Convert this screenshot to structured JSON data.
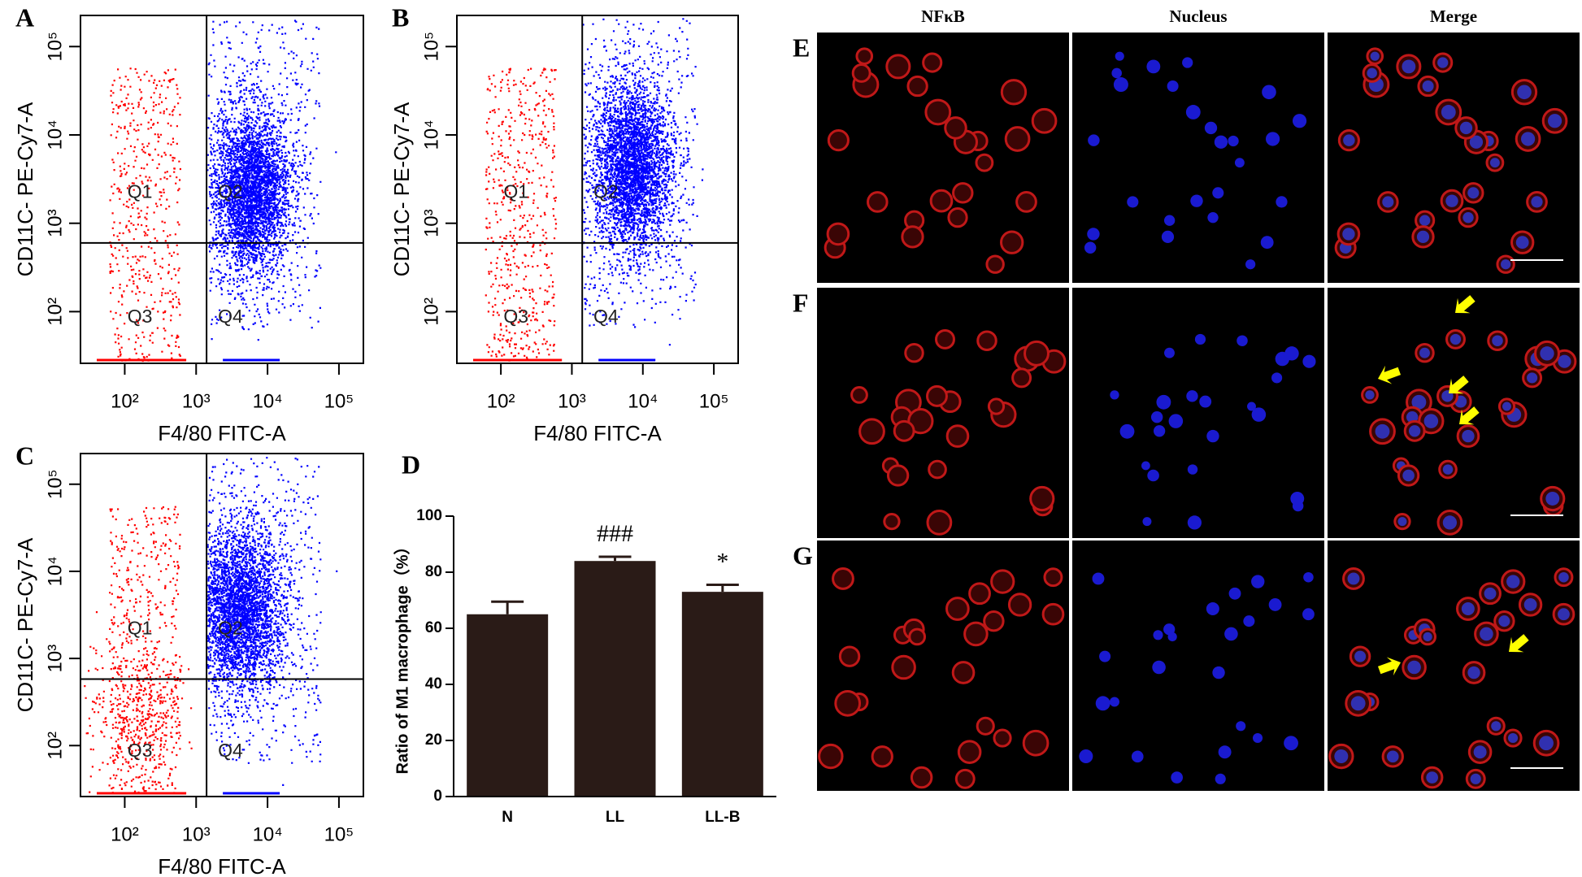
{
  "chart_data": [
    {
      "type": "flow",
      "panel": "A",
      "xlabel": "F4/80 FITC-A",
      "ylabel": "CD11C- PE-Cy7-A",
      "xscale": "log",
      "yscale": "log",
      "xlim": [
        24,
        220000
      ],
      "ylim": [
        26,
        225000
      ],
      "xticks": [
        {
          "value": 100,
          "label": "10²"
        },
        {
          "value": 1000,
          "label": "10³"
        },
        {
          "value": 10000,
          "label": "10⁴"
        },
        {
          "value": 100000,
          "label": "10⁵"
        }
      ],
      "yticks": [
        {
          "value": 100,
          "label": "10²"
        },
        {
          "value": 1000,
          "label": "10³"
        },
        {
          "value": 10000,
          "label": "10⁴"
        },
        {
          "value": 100000,
          "label": "10⁵"
        }
      ],
      "gates": {
        "x": 1400,
        "y": 600
      },
      "quadrants": [
        "Q1",
        "Q2",
        "Q3",
        "Q4"
      ],
      "colors": [
        "#ff0000",
        "#0000ff"
      ]
    },
    {
      "type": "flow",
      "panel": "B",
      "xlabel": "F4/80 FITC-A",
      "ylabel": "CD11C- PE-Cy7-A",
      "xscale": "log",
      "yscale": "log",
      "xlim": [
        24,
        220000
      ],
      "ylim": [
        26,
        225000
      ],
      "xticks": [
        {
          "value": 100,
          "label": "10²"
        },
        {
          "value": 1000,
          "label": "10³"
        },
        {
          "value": 10000,
          "label": "10⁴"
        },
        {
          "value": 100000,
          "label": "10⁵"
        }
      ],
      "yticks": [
        {
          "value": 100,
          "label": "10²"
        },
        {
          "value": 1000,
          "label": "10³"
        },
        {
          "value": 10000,
          "label": "10⁴"
        },
        {
          "value": 100000,
          "label": "10⁵"
        }
      ],
      "gates": {
        "x": 1400,
        "y": 600
      },
      "quadrants": [
        "Q1",
        "Q2",
        "Q3",
        "Q4"
      ],
      "colors": [
        "#ff0000",
        "#0000ff"
      ]
    },
    {
      "type": "flow",
      "panel": "C",
      "xlabel": "F4/80 FITC-A",
      "ylabel": "CD11C- PE-Cy7-A",
      "xscale": "log",
      "yscale": "log",
      "xlim": [
        24,
        220000
      ],
      "ylim": [
        26,
        225000
      ],
      "xticks": [
        {
          "value": 100,
          "label": "10²"
        },
        {
          "value": 1000,
          "label": "10³"
        },
        {
          "value": 10000,
          "label": "10⁴"
        },
        {
          "value": 100000,
          "label": "10⁵"
        }
      ],
      "yticks": [
        {
          "value": 100,
          "label": "10²"
        },
        {
          "value": 1000,
          "label": "10³"
        },
        {
          "value": 10000,
          "label": "10⁴"
        },
        {
          "value": 100000,
          "label": "10⁵"
        }
      ],
      "gates": {
        "x": 1400,
        "y": 580
      },
      "quadrants": [
        "Q1",
        "Q2",
        "Q3",
        "Q4"
      ],
      "colors": [
        "#ff0000",
        "#0000ff"
      ]
    },
    {
      "type": "bar",
      "panel": "D",
      "ylabel": "Ratio of M1 macrophage（%）",
      "categories": [
        "N",
        "LL",
        "LL-B"
      ],
      "values": [
        65,
        84,
        73
      ],
      "errors": [
        4.5,
        1.5,
        2.5
      ],
      "value_annotations": [
        null,
        "###",
        "*"
      ],
      "color": "#2a1b17",
      "ylim": [
        0,
        100
      ],
      "yticks": [
        0,
        20,
        40,
        60,
        80,
        100
      ]
    }
  ],
  "microscopy": {
    "columns": [
      "NFκB",
      "Nucleus",
      "Merge"
    ],
    "rows": [
      "E",
      "F",
      "G"
    ]
  }
}
